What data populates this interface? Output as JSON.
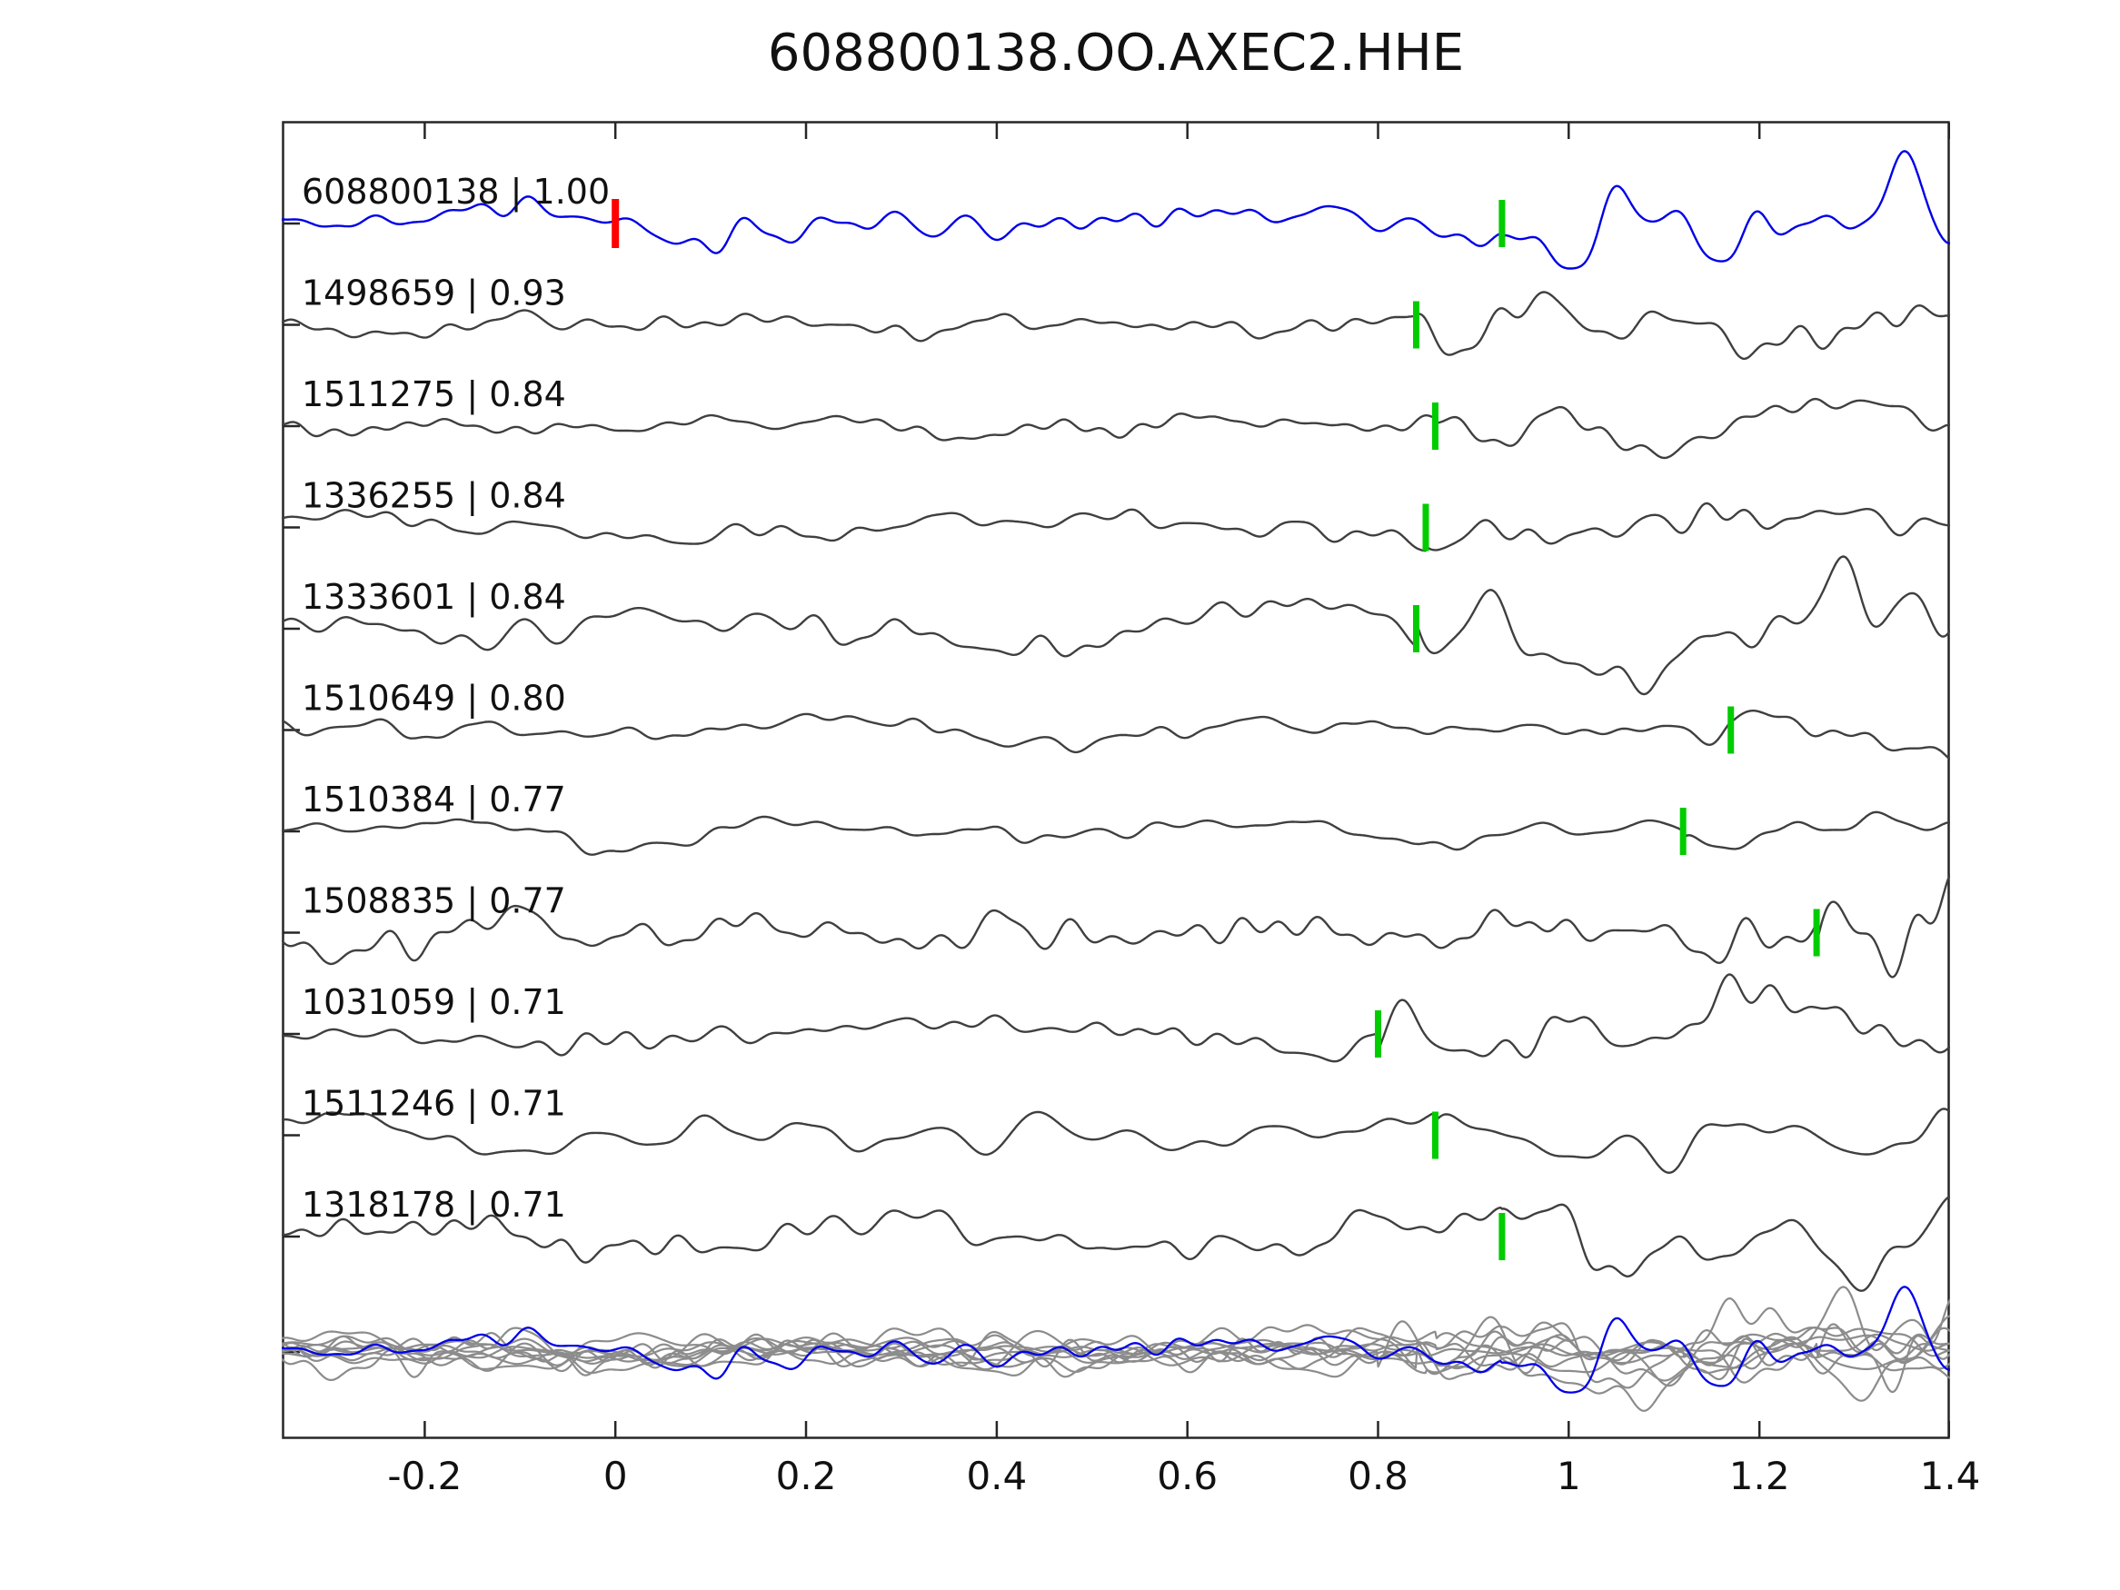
{
  "title": "608800138.OO.AXEC2.HHE",
  "colors": {
    "reference_trace": "#0000e8",
    "match_trace": "#3f3f3f",
    "overlay_trace": "#8c8c8c",
    "pick_green": "#00cc00",
    "pick_red": "#ff0000",
    "axis": "#262626",
    "text": "#111111"
  },
  "chart_data": {
    "type": "line",
    "title": "608800138.OO.AXEC2.HHE",
    "xlabel": "",
    "ylabel": "",
    "x_range": [
      -0.35,
      1.4
    ],
    "x_tick_values": [
      -0.2,
      0,
      0.2,
      0.4,
      0.6,
      0.8,
      1,
      1.2,
      1.4
    ],
    "x_ticks": [
      "-0.2",
      "0",
      "0.2",
      "0.4",
      "0.6",
      "0.8",
      "1",
      "1.2",
      "1.4"
    ],
    "grid": false,
    "legend": "none",
    "description": "Stacked seismogram waveform comparison: reference trace (blue) on top, ten matched traces below (label = event id | correlation), green vertical bars mark pick times, red bar marks reference zero time, bottom row shows all traces superimposed.",
    "traces": [
      {
        "id": "608800138",
        "correlation": "1.00",
        "label": "608800138 | 1.00",
        "pick_time": 0.93,
        "ref_mark_time": 0.0,
        "role": "reference"
      },
      {
        "id": "1498659",
        "correlation": "0.93",
        "label": "1498659 | 0.93",
        "pick_time": 0.84,
        "role": "match"
      },
      {
        "id": "1511275",
        "correlation": "0.84",
        "label": "1511275 | 0.84",
        "pick_time": 0.86,
        "role": "match"
      },
      {
        "id": "1336255",
        "correlation": "0.84",
        "label": "1336255 | 0.84",
        "pick_time": 0.85,
        "role": "match"
      },
      {
        "id": "1333601",
        "correlation": "0.84",
        "label": "1333601 | 0.84",
        "pick_time": 0.84,
        "role": "match"
      },
      {
        "id": "1510649",
        "correlation": "0.80",
        "label": "1510649 | 0.80",
        "pick_time": 1.17,
        "role": "match"
      },
      {
        "id": "1510384",
        "correlation": "0.77",
        "label": "1510384 | 0.77",
        "pick_time": 1.12,
        "role": "match"
      },
      {
        "id": "1508835",
        "correlation": "0.77",
        "label": "1508835 | 0.77",
        "pick_time": 1.26,
        "role": "match"
      },
      {
        "id": "1031059",
        "correlation": "0.71",
        "label": "1031059 | 0.71",
        "pick_time": 0.8,
        "role": "match"
      },
      {
        "id": "1511246",
        "correlation": "0.71",
        "label": "1511246 | 0.71",
        "pick_time": 0.86,
        "role": "match"
      },
      {
        "id": "1318178",
        "correlation": "0.71",
        "label": "1318178 | 0.71",
        "pick_time": 0.93,
        "role": "match"
      }
    ],
    "overlay_row": {
      "description": "all traces superimposed (gray) with reference trace in blue"
    }
  }
}
